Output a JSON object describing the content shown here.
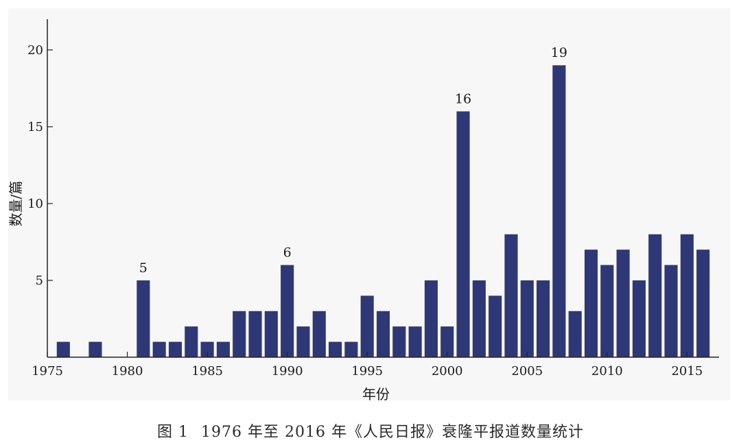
{
  "chart_data": {
    "type": "bar",
    "title": "",
    "xlabel": "年份",
    "ylabel": "数量/篇",
    "xlim": [
      1975,
      2017
    ],
    "ylim": [
      0,
      22
    ],
    "x_ticks": [
      1975,
      1980,
      1985,
      1990,
      1995,
      2000,
      2005,
      2010,
      2015
    ],
    "y_ticks": [
      5,
      10,
      15,
      20
    ],
    "categories": [
      1976,
      1977,
      1978,
      1979,
      1980,
      1981,
      1982,
      1983,
      1984,
      1985,
      1986,
      1987,
      1988,
      1989,
      1990,
      1991,
      1992,
      1993,
      1994,
      1995,
      1996,
      1997,
      1998,
      1999,
      2000,
      2001,
      2002,
      2003,
      2004,
      2005,
      2006,
      2007,
      2008,
      2009,
      2010,
      2011,
      2012,
      2013,
      2014,
      2015,
      2016
    ],
    "values": [
      1,
      0,
      1,
      0,
      0,
      5,
      1,
      1,
      2,
      1,
      1,
      3,
      3,
      3,
      6,
      2,
      3,
      1,
      1,
      4,
      3,
      2,
      2,
      5,
      2,
      16,
      5,
      4,
      8,
      5,
      5,
      19,
      3,
      7,
      6,
      7,
      5,
      8,
      6,
      8,
      7
    ],
    "data_labels": [
      {
        "x": 1981,
        "text": "5"
      },
      {
        "x": 1990,
        "text": "6"
      },
      {
        "x": 2001,
        "text": "16"
      },
      {
        "x": 2007,
        "text": "19"
      }
    ],
    "bar_color": "#2e3876",
    "grid": false
  },
  "caption": {
    "label": "图 1",
    "text": "1976 年至 2016 年《人民日报》衰隆平报道数量统计"
  }
}
